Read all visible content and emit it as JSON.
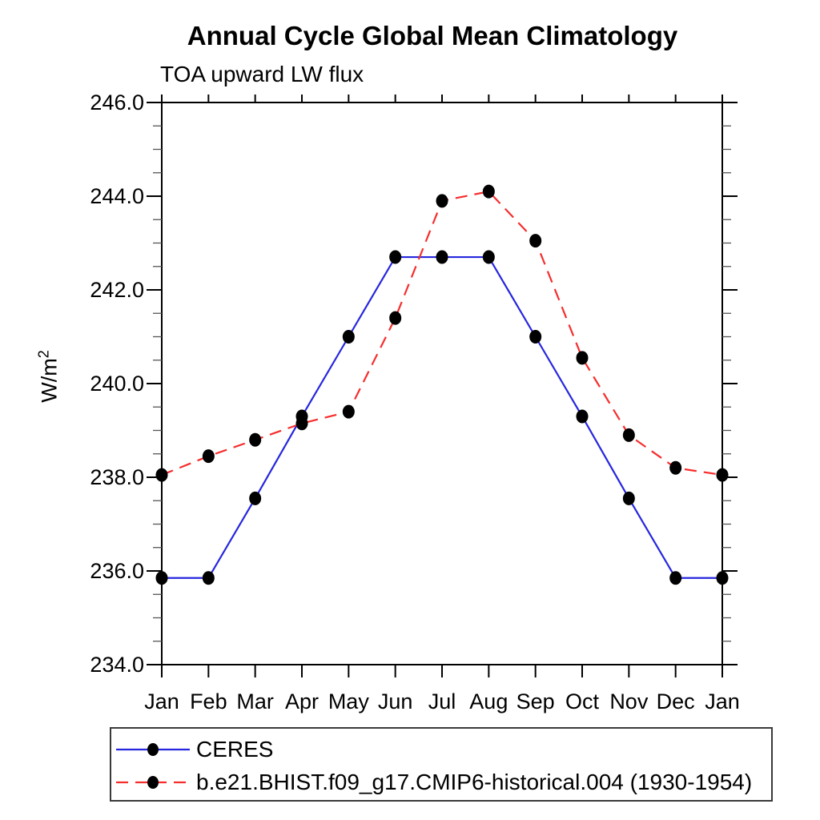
{
  "page": {
    "background": "#ffffff"
  },
  "chart_data": {
    "type": "line",
    "title": "Annual Cycle Global Mean Climatology",
    "subtitle": "TOA upward LW flux",
    "ylabel_base": "W/m",
    "ylabel_sup": "2",
    "categories": [
      "Jan",
      "Feb",
      "Mar",
      "Apr",
      "May",
      "Jun",
      "Jul",
      "Aug",
      "Sep",
      "Oct",
      "Nov",
      "Dec",
      "Jan"
    ],
    "ylim": [
      234.0,
      246.0
    ],
    "ytick_minor_step": 0.5,
    "yticks": [
      {
        "value": 234.0,
        "label": "234.0"
      },
      {
        "value": 236.0,
        "label": "236.0"
      },
      {
        "value": 238.0,
        "label": "238.0"
      },
      {
        "value": 240.0,
        "label": "240.0"
      },
      {
        "value": 242.0,
        "label": "242.0"
      },
      {
        "value": 244.0,
        "label": "244.0"
      },
      {
        "value": 246.0,
        "label": "246.0"
      }
    ],
    "grid": false,
    "legend_position": "bottom-left",
    "axis_color": "#000000",
    "marker_color": "#000000",
    "series": [
      {
        "name": "CERES",
        "color": "#2626df",
        "dash": "",
        "marker": "black-dot",
        "values": [
          235.85,
          235.85,
          237.55,
          239.3,
          241.0,
          242.7,
          242.7,
          242.7,
          241.0,
          239.3,
          237.55,
          235.85,
          235.85
        ]
      },
      {
        "name": "b.e21.BHIST.f09_g17.CMIP6-historical.004 (1930-1954)",
        "color": "#f62d2d",
        "dash": "15 9",
        "marker": "black-dot",
        "values": [
          238.05,
          238.45,
          238.8,
          239.15,
          239.4,
          241.4,
          243.9,
          244.1,
          243.05,
          240.55,
          238.9,
          238.2,
          238.05
        ]
      }
    ]
  }
}
